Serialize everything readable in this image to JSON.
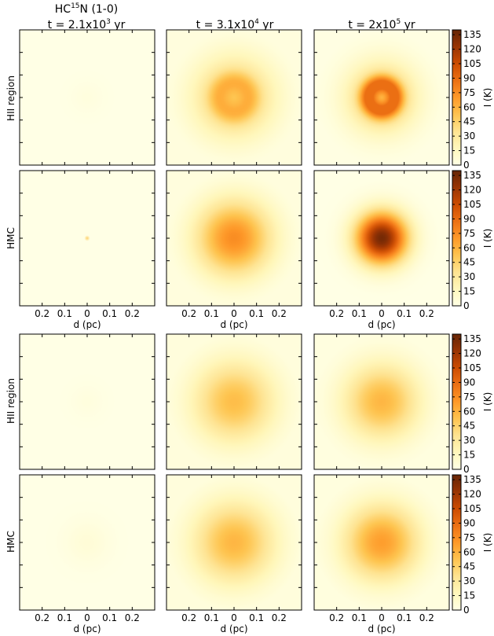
{
  "figure": {
    "title_molecule": "HC",
    "title_sup": "15",
    "title_rest": "N (1-0)",
    "column_titles": [
      {
        "prefix": "t = 2.1x10",
        "sup": "3",
        "suffix": " yr"
      },
      {
        "prefix": "t = 3.1x10",
        "sup": "4",
        "suffix": " yr"
      },
      {
        "prefix": "t = 2x10",
        "sup": "5",
        "suffix": " yr"
      }
    ],
    "row_labels": [
      "HII region",
      "HMC",
      "HII region",
      "HMC"
    ],
    "colorbar_label": "I (K)",
    "colorbar_ticks": [
      0,
      15,
      30,
      45,
      60,
      75,
      90,
      105,
      120,
      135
    ],
    "xlabel": "d (pc)",
    "x_tick_labels": [
      "0.2",
      "0.1",
      "0",
      "0.1",
      "0.2"
    ],
    "x_tick_values": [
      -0.2,
      -0.1,
      0,
      0.1,
      0.2
    ],
    "xlim": [
      -0.3,
      0.3
    ]
  },
  "chart_data": {
    "type": "heatmap",
    "colormap": "YlOrBr",
    "vmin": 0,
    "vmax": 140,
    "panels": [
      {
        "row": 0,
        "col": 0,
        "peak": 3,
        "radius": 0.05,
        "ring": 0
      },
      {
        "row": 0,
        "col": 1,
        "peak": 62,
        "radius": 0.13,
        "ring": 0.3
      },
      {
        "row": 0,
        "col": 2,
        "peak": 88,
        "radius": 0.11,
        "ring": 0.6
      },
      {
        "row": 1,
        "col": 0,
        "peak": 45,
        "radius": 0.012,
        "ring": 0
      },
      {
        "row": 1,
        "col": 1,
        "peak": 75,
        "radius": 0.12,
        "ring": 0
      },
      {
        "row": 1,
        "col": 2,
        "peak": 135,
        "radius": 0.08,
        "ring": 0
      },
      {
        "row": 2,
        "col": 0,
        "peak": 3,
        "radius": 0.05,
        "ring": 0
      },
      {
        "row": 2,
        "col": 1,
        "peak": 55,
        "radius": 0.13,
        "ring": 0
      },
      {
        "row": 2,
        "col": 2,
        "peak": 58,
        "radius": 0.12,
        "ring": 0
      },
      {
        "row": 3,
        "col": 0,
        "peak": 6,
        "radius": 0.07,
        "ring": 0
      },
      {
        "row": 3,
        "col": 1,
        "peak": 58,
        "radius": 0.13,
        "ring": 0
      },
      {
        "row": 3,
        "col": 2,
        "peak": 68,
        "radius": 0.12,
        "ring": 0
      }
    ]
  }
}
